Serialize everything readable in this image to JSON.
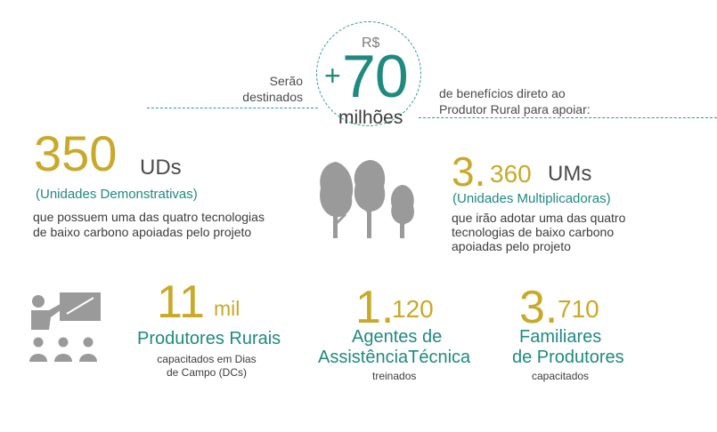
{
  "header": {
    "currency": "R$",
    "plus": "+",
    "amount": "70",
    "unit": "milhões",
    "left_text_1": "Serão",
    "left_text_2": "destinados",
    "right_text_1": "de benefícios direto ao",
    "right_text_2": "Produtor Rural para apoiar:"
  },
  "uds": {
    "number": "350",
    "label": "UDs",
    "subtitle": "(Unidades Demonstrativas)",
    "desc_1": "que possuem uma das quatro tecnologias",
    "desc_2": "de baixo carbono apoiadas pelo projeto"
  },
  "ums": {
    "number_big": "3.",
    "number_rest": "360",
    "label": "UMs",
    "subtitle": "(Unidades Multiplicadoras)",
    "desc_1": "que irão adotar uma das quatro",
    "desc_2": "tecnologias de baixo carbono",
    "desc_3": "apoiadas pelo projeto"
  },
  "produtores": {
    "number": "11",
    "unit": "mil",
    "title": "Produtores Rurais",
    "desc_1": "capacitados em Dias",
    "desc_2": "de Campo (DCs)"
  },
  "agentes": {
    "number_big": "1.",
    "number_rest": "120",
    "title_1": "Agentes de",
    "title_2": "AssistênciaTécnica",
    "desc": "treinados"
  },
  "familiares": {
    "number_big": "3.",
    "number_rest": "710",
    "title_1": "Familiares",
    "title_2": "de Produtores",
    "desc": "capacitados"
  },
  "icons": {
    "trees": "trees-icon",
    "training": "training-presentation-icon",
    "icon_color": "#9a9a9a"
  },
  "colors": {
    "gold": "#c9a92a",
    "teal": "#1f8a7f"
  }
}
